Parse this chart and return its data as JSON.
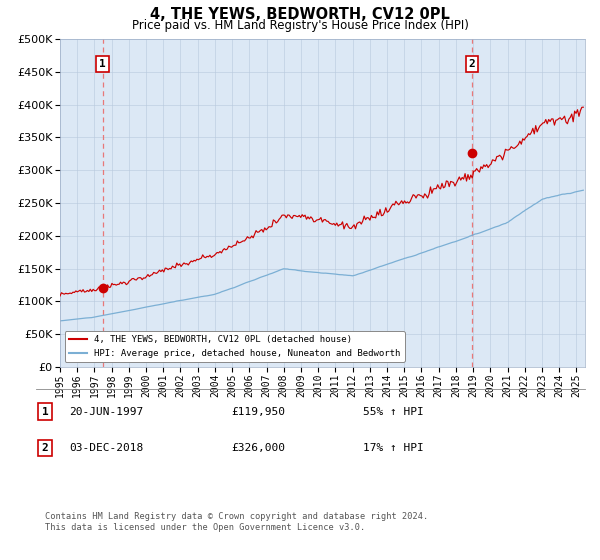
{
  "title": "4, THE YEWS, BEDWORTH, CV12 0PL",
  "subtitle": "Price paid vs. HM Land Registry's House Price Index (HPI)",
  "background_color": "#ffffff",
  "plot_bg_color": "#dce8f5",
  "red_line_color": "#cc0000",
  "blue_line_color": "#7bafd4",
  "dashed_line_color": "#e87878",
  "marker_color": "#cc0000",
  "sale1_date_num": 1997.47,
  "sale1_price": 119950,
  "sale2_date_num": 2018.92,
  "sale2_price": 326000,
  "legend_line1": "4, THE YEWS, BEDWORTH, CV12 0PL (detached house)",
  "legend_line2": "HPI: Average price, detached house, Nuneaton and Bedworth",
  "annotation1_date": "20-JUN-1997",
  "annotation1_price": "£119,950",
  "annotation1_hpi": "55% ↑ HPI",
  "annotation2_date": "03-DEC-2018",
  "annotation2_price": "£326,000",
  "annotation2_hpi": "17% ↑ HPI",
  "footer": "Contains HM Land Registry data © Crown copyright and database right 2024.\nThis data is licensed under the Open Government Licence v3.0.",
  "ylim": [
    0,
    500000
  ],
  "yticks": [
    0,
    50000,
    100000,
    150000,
    200000,
    250000,
    300000,
    350000,
    400000,
    450000,
    500000
  ],
  "xmin": 1995.0,
  "xmax": 2025.5
}
